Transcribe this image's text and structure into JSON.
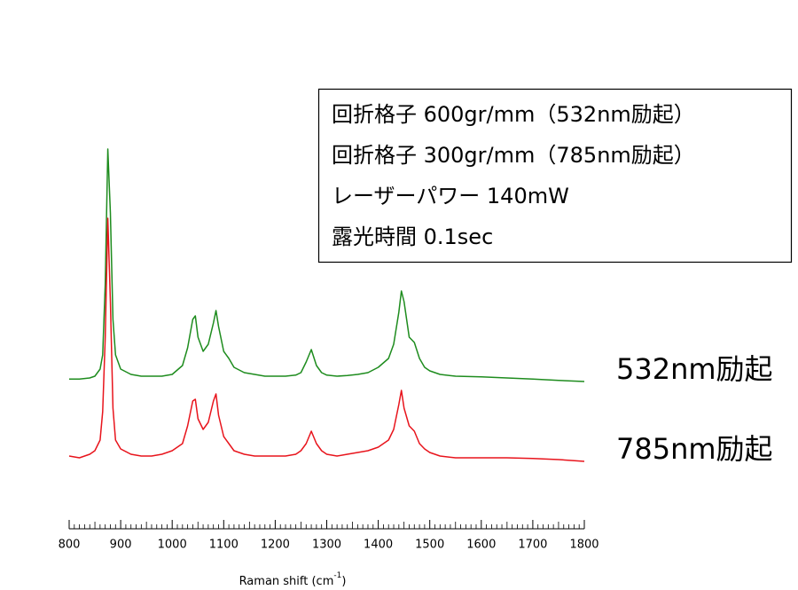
{
  "chart_data": {
    "type": "line",
    "annotations": [
      "回折格子 600gr/mm（532nm励起）",
      "回折格子 300gr/mm（785nm励起）",
      "レーザーパワー 140mW",
      "露光時間 0.1sec"
    ],
    "x_label": [
      "Raman shift (cm",
      "-1",
      ")"
    ],
    "x": [
      800,
      820,
      840,
      850,
      860,
      865,
      870,
      875,
      880,
      885,
      890,
      900,
      920,
      940,
      960,
      980,
      1000,
      1020,
      1030,
      1040,
      1045,
      1050,
      1060,
      1070,
      1080,
      1085,
      1090,
      1100,
      1110,
      1120,
      1140,
      1160,
      1180,
      1200,
      1220,
      1240,
      1250,
      1260,
      1270,
      1280,
      1290,
      1300,
      1320,
      1340,
      1360,
      1380,
      1400,
      1420,
      1430,
      1440,
      1445,
      1450,
      1460,
      1470,
      1480,
      1490,
      1500,
      1520,
      1550,
      1600,
      1650,
      1700,
      1750,
      1800
    ],
    "series": [
      {
        "name": "532nm励起",
        "color": "#1e8c1e",
        "values": [
          33.2,
          33.2,
          33.5,
          34,
          36,
          40,
          60,
          98,
          80,
          50,
          40,
          36,
          34.5,
          34,
          34,
          34,
          34.5,
          37,
          42,
          50,
          51,
          45,
          41,
          43,
          49,
          52.5,
          48,
          41,
          39,
          36.5,
          35,
          34.5,
          34,
          34,
          34,
          34.3,
          35,
          38,
          41.5,
          37,
          35,
          34.3,
          34,
          34.2,
          34.5,
          35,
          36.5,
          39,
          43,
          52,
          58,
          55,
          45,
          43.5,
          39,
          36.5,
          35.5,
          34.5,
          34,
          33.8,
          33.5,
          33.2,
          32.8,
          32.5
        ]
      },
      {
        "name": "785nm励起",
        "color": "#e8141c",
        "values": [
          11.5,
          11,
          12,
          13,
          16,
          24,
          45,
          78.5,
          55,
          25,
          16,
          13.5,
          12,
          11.5,
          11.5,
          12,
          13,
          15,
          20,
          27,
          27.5,
          22,
          19,
          21,
          27,
          29,
          23,
          17,
          15,
          13,
          12,
          11.5,
          11.5,
          11.5,
          11.5,
          12,
          13,
          15,
          18.5,
          15,
          13,
          12,
          11.5,
          12,
          12.5,
          13,
          14,
          16,
          19,
          26,
          30,
          25,
          20,
          18.5,
          15,
          13.5,
          12.5,
          11.5,
          11,
          11,
          11,
          10.8,
          10.5,
          10
        ]
      }
    ],
    "xlim": [
      800,
      1800
    ],
    "ylim": [
      0,
      100
    ],
    "xticks": [
      800,
      900,
      1000,
      1100,
      1200,
      1300,
      1400,
      1500,
      1600,
      1700,
      1800
    ],
    "xminorticks": [
      810,
      820,
      830,
      840,
      850,
      860,
      870,
      880,
      890,
      910,
      920,
      930,
      940,
      950,
      960,
      970,
      980,
      990,
      1010,
      1020,
      1030,
      1040,
      1050,
      1060,
      1070,
      1080,
      1090,
      1110,
      1120,
      1130,
      1140,
      1150,
      1160,
      1170,
      1180,
      1190,
      1210,
      1220,
      1230,
      1240,
      1250,
      1260,
      1270,
      1280,
      1290,
      1310,
      1320,
      1330,
      1340,
      1350,
      1360,
      1370,
      1380,
      1390,
      1410,
      1420,
      1430,
      1440,
      1450,
      1460,
      1470,
      1480,
      1490,
      1510,
      1520,
      1530,
      1540,
      1550,
      1560,
      1570,
      1580,
      1590,
      1610,
      1620,
      1630,
      1640,
      1650,
      1660,
      1670,
      1680,
      1690,
      1710,
      1720,
      1730,
      1740,
      1750,
      1760,
      1770,
      1780,
      1790
    ]
  }
}
